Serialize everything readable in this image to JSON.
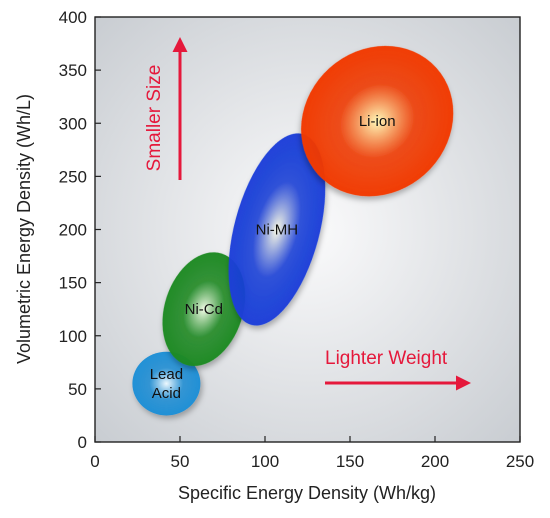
{
  "chart_data": {
    "type": "scatter",
    "title": "",
    "xlabel": "Specific Energy Density (Wh/kg)",
    "ylabel": "Volumetric Energy Density (Wh/L)",
    "xlim": [
      0,
      250
    ],
    "ylim": [
      0,
      400
    ],
    "xticks": [
      0,
      50,
      100,
      150,
      200,
      250
    ],
    "yticks": [
      0,
      50,
      100,
      150,
      200,
      250,
      300,
      350,
      400
    ],
    "grid": false,
    "regions": [
      {
        "label_lines": [
          "Lead",
          "Acid"
        ],
        "cx": 42,
        "cy": 55,
        "rx": 20,
        "ry": 30,
        "rotate": 0,
        "color": "#1e8fd6",
        "core": "#eef9ff"
      },
      {
        "label_lines": [
          "Ni-Cd"
        ],
        "cx": 64,
        "cy": 125,
        "rx": 23,
        "ry": 55,
        "rotate": 18,
        "color": "#1c8a22",
        "core": "#f2fbe6"
      },
      {
        "label_lines": [
          "Ni-MH"
        ],
        "cx": 107,
        "cy": 200,
        "rx": 25,
        "ry": 93,
        "rotate": 15,
        "color": "#1a3fd9",
        "core": "#fbfbe4"
      },
      {
        "label_lines": [
          "Li-ion"
        ],
        "cx": 166,
        "cy": 302,
        "rx": 42,
        "ry": 75,
        "rotate": 48,
        "color": "#f23a00",
        "core": "#fff9b8"
      }
    ],
    "annotations": [
      {
        "text": "Smaller Size",
        "color": "#e5183b",
        "direction": "up"
      },
      {
        "text": "Lighter Weight",
        "color": "#e5183b",
        "direction": "right"
      }
    ],
    "colors": {
      "annotation": "#e5183b",
      "plot_bg_edge": "#c9cdd2",
      "plot_bg_center": "#fbfbfc"
    }
  }
}
